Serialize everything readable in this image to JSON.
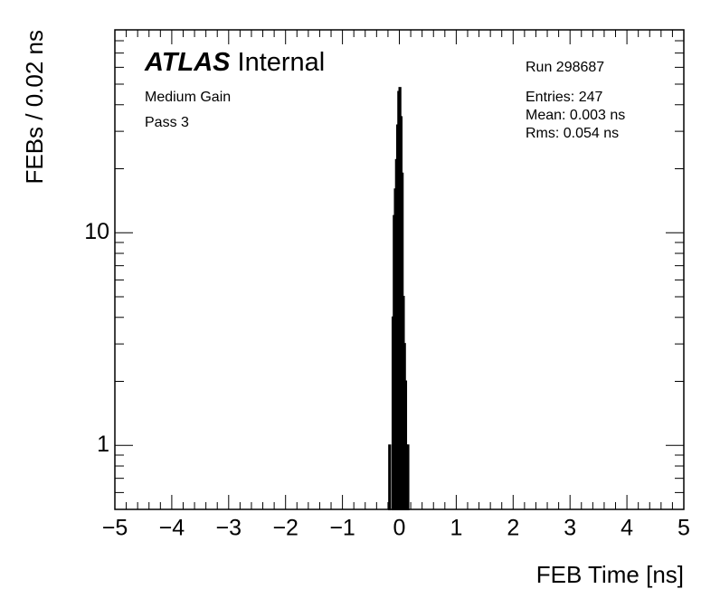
{
  "chart_data": {
    "type": "histogram",
    "brand": "ATLAS",
    "label": "Internal",
    "notes": [
      "Medium Gain",
      "Pass 3"
    ],
    "run": "Run 298687",
    "stats": [
      "Entries: 247",
      "Mean: 0.003 ns",
      "Rms: 0.054 ns"
    ],
    "x_label": "FEB Time [ns]",
    "y_label": "FEBs / 0.02 ns",
    "bins": [
      -0.18,
      -0.16,
      -0.14,
      -0.12,
      -0.1,
      -0.08,
      -0.06,
      -0.04,
      -0.02,
      0,
      0.02,
      0.04,
      0.06,
      0.08,
      0.1,
      0.12,
      0.14,
      0.16
    ],
    "values": [
      1,
      0,
      0,
      4,
      12,
      16,
      22,
      32,
      46,
      48,
      35,
      19,
      5,
      3,
      2,
      1,
      1
    ],
    "color": "#000000",
    "log_y": true,
    "xlim": [
      -5,
      5
    ],
    "ylim": [
      0.5,
      90
    ],
    "xticks": [
      {
        "value": -5,
        "label": "−5"
      },
      {
        "value": -4,
        "label": "−4"
      },
      {
        "value": -3,
        "label": "−3"
      },
      {
        "value": -2,
        "label": "−2"
      },
      {
        "value": -1,
        "label": "−1"
      },
      0,
      1,
      2,
      3,
      4,
      5
    ],
    "yticks": [
      1,
      10
    ]
  }
}
